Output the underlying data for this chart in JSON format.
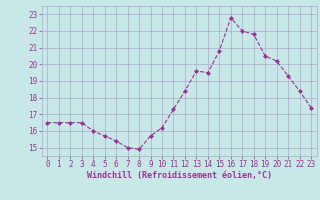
{
  "x": [
    0,
    1,
    2,
    3,
    4,
    5,
    6,
    7,
    8,
    9,
    10,
    11,
    12,
    13,
    14,
    15,
    16,
    17,
    18,
    19,
    20,
    21,
    22,
    23
  ],
  "y": [
    16.5,
    16.5,
    16.5,
    16.5,
    16.0,
    15.7,
    15.4,
    15.0,
    14.9,
    15.7,
    16.2,
    17.3,
    18.4,
    19.6,
    19.5,
    20.8,
    22.8,
    22.0,
    21.8,
    20.5,
    20.2,
    19.3,
    18.4,
    17.4
  ],
  "line_color": "#993399",
  "marker": "D",
  "marker_size": 2.0,
  "bg_color": "#c8e8e8",
  "grid_color": "#aaaacc",
  "xlabel": "Windchill (Refroidissement éolien,°C)",
  "xlabel_color": "#993399",
  "tick_color": "#993399",
  "label_color": "#993399",
  "ylim": [
    14.5,
    23.5
  ],
  "xlim": [
    -0.5,
    23.5
  ],
  "yticks": [
    15,
    16,
    17,
    18,
    19,
    20,
    21,
    22,
    23
  ],
  "xticks": [
    0,
    1,
    2,
    3,
    4,
    5,
    6,
    7,
    8,
    9,
    10,
    11,
    12,
    13,
    14,
    15,
    16,
    17,
    18,
    19,
    20,
    21,
    22,
    23
  ],
  "tick_fontsize": 5.5,
  "xlabel_fontsize": 6.0,
  "linewidth": 0.8
}
